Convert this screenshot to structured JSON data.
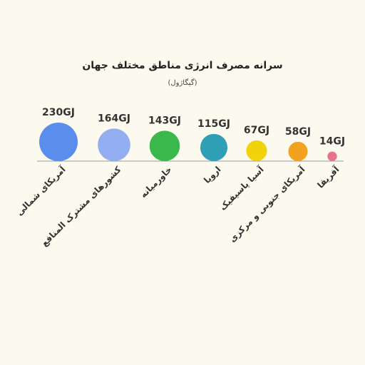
{
  "chart_data": {
    "type": "bubble",
    "title": "سرانه مصرف انرژی مناطق مختلف جهان",
    "subtitle": "(گیگاژول)",
    "categories": [
      "آمریکای شمالی",
      "کشورهای مشترک المنافع",
      "خاورمیانه",
      "اروپا",
      "آسیا پاسیفیک",
      "آمریکای جنوبی و مرکزی",
      "آفریقا"
    ],
    "values": [
      230,
      164,
      143,
      115,
      67,
      58,
      14
    ],
    "value_labels": [
      "230GJ",
      "164GJ",
      "143GJ",
      "115GJ",
      "67GJ",
      "58GJ",
      "14GJ"
    ],
    "colors": [
      "#5b8ded",
      "#93aef0",
      "#3bb84b",
      "#2f9fb6",
      "#f2d20a",
      "#f2a21f",
      "#e8728c"
    ]
  }
}
